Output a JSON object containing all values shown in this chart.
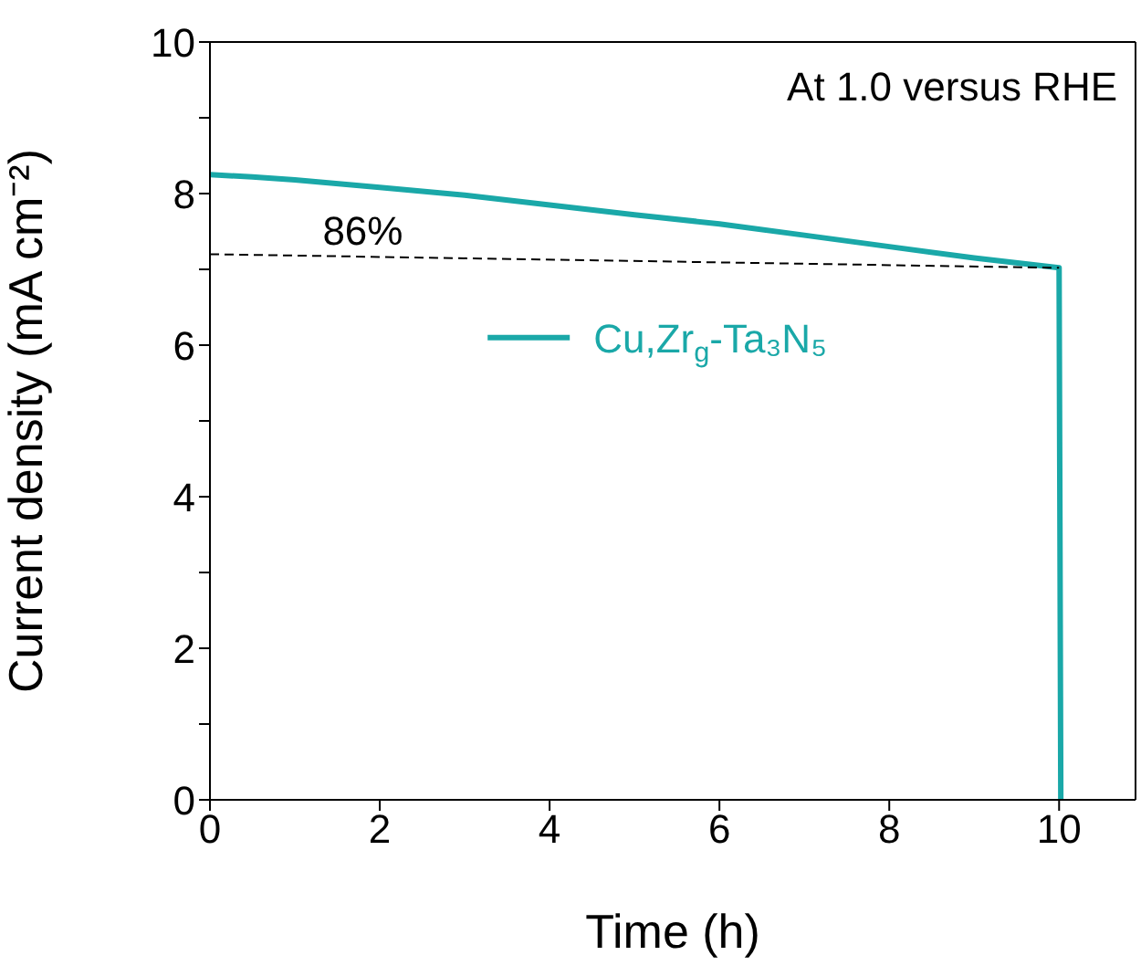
{
  "chart_data": {
    "type": "line",
    "xlabel": "Time (h)",
    "ylabel": "Current density (mA cm⁻²)",
    "xlim": [
      0,
      10.9
    ],
    "xticks": [
      0,
      2,
      4,
      6,
      8,
      10
    ],
    "ylim": [
      0,
      10
    ],
    "yticks": [
      0,
      {
        "value": 1,
        "label": null
      },
      2,
      {
        "value": 3,
        "label": null
      },
      4,
      {
        "value": 5,
        "label": null
      },
      6,
      {
        "value": 7,
        "label": null
      },
      8,
      {
        "value": 9,
        "label": null
      },
      10
    ],
    "legend": "right",
    "marker": "none",
    "series": [
      {
        "name": "Cu,Zr$_{g}$-Ta₃N₅",
        "color": "#1aa8a8",
        "line_style": "solid",
        "x": [
          0,
          0.5,
          1,
          2,
          3,
          4,
          5,
          6,
          7,
          8,
          9,
          10,
          10.02
        ],
        "values": [
          8.25,
          8.22,
          8.18,
          8.08,
          7.98,
          7.85,
          7.72,
          7.6,
          7.45,
          7.3,
          7.15,
          7.02,
          0
        ]
      },
      {
        "color": "#000000",
        "line_style": "dashed",
        "x": [
          0,
          10
        ],
        "values": [
          7.2,
          7.02
        ]
      }
    ],
    "annotations": [
      "At 1.0 versus RHE",
      {
        "text": "86%",
        "x": 1.8,
        "y": 7.2
      }
    ]
  }
}
